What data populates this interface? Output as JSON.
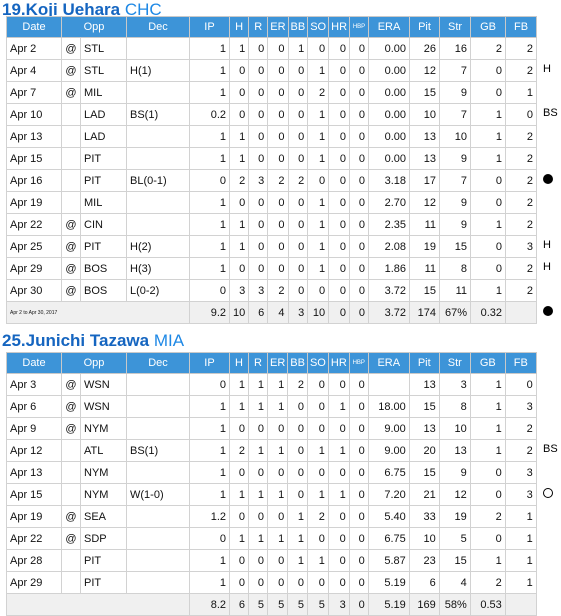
{
  "sections": [
    {
      "title_name": "19.Koji Uehara",
      "title_team": "CHC",
      "headers": [
        "Date",
        "",
        "Opp",
        "Dec",
        "IP",
        "H",
        "R",
        "ER",
        "BB",
        "SO",
        "HR",
        "HBP",
        "ERA",
        "Pit",
        "Str",
        "GB",
        "FB"
      ],
      "rows": [
        {
          "date": "Apr 2",
          "at": "@",
          "opp": "STL",
          "dec": "",
          "ip": "1",
          "h": "1",
          "r": "0",
          "er": "0",
          "bb": "1",
          "so": "0",
          "hr": "0",
          "hbp": "0",
          "era": "0.00",
          "pit": "26",
          "str": "16",
          "gb": "2",
          "fb": "2",
          "mark": ""
        },
        {
          "date": "Apr 4",
          "at": "@",
          "opp": "STL",
          "dec": "H(1)",
          "ip": "1",
          "h": "0",
          "r": "0",
          "er": "0",
          "bb": "0",
          "so": "1",
          "hr": "0",
          "hbp": "0",
          "era": "0.00",
          "pit": "12",
          "str": "7",
          "gb": "0",
          "fb": "2",
          "mark": "H"
        },
        {
          "date": "Apr 7",
          "at": "@",
          "opp": "MIL",
          "dec": "",
          "ip": "1",
          "h": "0",
          "r": "0",
          "er": "0",
          "bb": "0",
          "so": "2",
          "hr": "0",
          "hbp": "0",
          "era": "0.00",
          "pit": "15",
          "str": "9",
          "gb": "0",
          "fb": "1",
          "mark": ""
        },
        {
          "date": "Apr 10",
          "at": "",
          "opp": "LAD",
          "dec": "BS(1)",
          "ip": "0.2",
          "h": "0",
          "r": "0",
          "er": "0",
          "bb": "0",
          "so": "1",
          "hr": "0",
          "hbp": "0",
          "era": "0.00",
          "pit": "10",
          "str": "7",
          "gb": "1",
          "fb": "0",
          "mark": "BS"
        },
        {
          "date": "Apr 13",
          "at": "",
          "opp": "LAD",
          "dec": "",
          "ip": "1",
          "h": "1",
          "r": "0",
          "er": "0",
          "bb": "0",
          "so": "1",
          "hr": "0",
          "hbp": "0",
          "era": "0.00",
          "pit": "13",
          "str": "10",
          "gb": "1",
          "fb": "2",
          "mark": ""
        },
        {
          "date": "Apr 15",
          "at": "",
          "opp": "PIT",
          "dec": "",
          "ip": "1",
          "h": "1",
          "r": "0",
          "er": "0",
          "bb": "0",
          "so": "1",
          "hr": "0",
          "hbp": "0",
          "era": "0.00",
          "pit": "13",
          "str": "9",
          "gb": "1",
          "fb": "2",
          "mark": ""
        },
        {
          "date": "Apr 16",
          "at": "",
          "opp": "PIT",
          "dec": "BL(0-1)",
          "ip": "0",
          "h": "2",
          "r": "3",
          "er": "2",
          "bb": "2",
          "so": "0",
          "hr": "0",
          "hbp": "0",
          "era": "3.18",
          "pit": "17",
          "str": "7",
          "gb": "0",
          "fb": "2",
          "mark": "filled-dot"
        },
        {
          "date": "Apr 19",
          "at": "",
          "opp": "MIL",
          "dec": "",
          "ip": "1",
          "h": "0",
          "r": "0",
          "er": "0",
          "bb": "0",
          "so": "1",
          "hr": "0",
          "hbp": "0",
          "era": "2.70",
          "pit": "12",
          "str": "9",
          "gb": "0",
          "fb": "2",
          "mark": ""
        },
        {
          "date": "Apr 22",
          "at": "@",
          "opp": "CIN",
          "dec": "",
          "ip": "1",
          "h": "1",
          "r": "0",
          "er": "0",
          "bb": "0",
          "so": "1",
          "hr": "0",
          "hbp": "0",
          "era": "2.35",
          "pit": "11",
          "str": "9",
          "gb": "1",
          "fb": "2",
          "mark": ""
        },
        {
          "date": "Apr 25",
          "at": "@",
          "opp": "PIT",
          "dec": "H(2)",
          "ip": "1",
          "h": "1",
          "r": "0",
          "er": "0",
          "bb": "0",
          "so": "1",
          "hr": "0",
          "hbp": "0",
          "era": "2.08",
          "pit": "19",
          "str": "15",
          "gb": "0",
          "fb": "3",
          "mark": "H"
        },
        {
          "date": "Apr 29",
          "at": "@",
          "opp": "BOS",
          "dec": "H(3)",
          "ip": "1",
          "h": "0",
          "r": "0",
          "er": "0",
          "bb": "0",
          "so": "1",
          "hr": "0",
          "hbp": "0",
          "era": "1.86",
          "pit": "11",
          "str": "8",
          "gb": "0",
          "fb": "2",
          "mark": "H"
        },
        {
          "date": "Apr 30",
          "at": "@",
          "opp": "BOS",
          "dec": "L(0-2)",
          "ip": "0",
          "h": "3",
          "r": "3",
          "er": "2",
          "bb": "0",
          "so": "0",
          "hr": "0",
          "hbp": "0",
          "era": "3.72",
          "pit": "15",
          "str": "11",
          "gb": "1",
          "fb": "2",
          "mark": ""
        }
      ],
      "total": {
        "period": "Apr 2 to Apr 30, 2017",
        "ip": "9.2",
        "h": "10",
        "r": "6",
        "er": "4",
        "bb": "3",
        "so": "10",
        "hr": "0",
        "hbp": "0",
        "era": "3.72",
        "pit": "174",
        "str": "67%",
        "gb": "0.32",
        "fb": "",
        "mark": "filled-dot"
      }
    },
    {
      "title_name": "25.Junichi Tazawa",
      "title_team": "MIA",
      "headers": [
        "Date",
        "",
        "Opp",
        "Dec",
        "IP",
        "H",
        "R",
        "ER",
        "BB",
        "SO",
        "HR",
        "HBP",
        "ERA",
        "Pit",
        "Str",
        "GB",
        "FB"
      ],
      "rows": [
        {
          "date": "Apr 3",
          "at": "@",
          "opp": "WSN",
          "dec": "",
          "ip": "0",
          "h": "1",
          "r": "1",
          "er": "1",
          "bb": "2",
          "so": "0",
          "hr": "0",
          "hbp": "0",
          "era": "",
          "pit": "13",
          "str": "3",
          "gb": "1",
          "fb": "0",
          "mark": ""
        },
        {
          "date": "Apr 6",
          "at": "@",
          "opp": "WSN",
          "dec": "",
          "ip": "1",
          "h": "1",
          "r": "1",
          "er": "1",
          "bb": "0",
          "so": "0",
          "hr": "1",
          "hbp": "0",
          "era": "18.00",
          "pit": "15",
          "str": "8",
          "gb": "1",
          "fb": "3",
          "mark": ""
        },
        {
          "date": "Apr 9",
          "at": "@",
          "opp": "NYM",
          "dec": "",
          "ip": "1",
          "h": "0",
          "r": "0",
          "er": "0",
          "bb": "0",
          "so": "0",
          "hr": "0",
          "hbp": "0",
          "era": "9.00",
          "pit": "13",
          "str": "10",
          "gb": "1",
          "fb": "2",
          "mark": ""
        },
        {
          "date": "Apr 12",
          "at": "",
          "opp": "ATL",
          "dec": "BS(1)",
          "ip": "1",
          "h": "2",
          "r": "1",
          "er": "1",
          "bb": "0",
          "so": "1",
          "hr": "1",
          "hbp": "0",
          "era": "9.00",
          "pit": "20",
          "str": "13",
          "gb": "1",
          "fb": "2",
          "mark": "BS"
        },
        {
          "date": "Apr 13",
          "at": "",
          "opp": "NYM",
          "dec": "",
          "ip": "1",
          "h": "0",
          "r": "0",
          "er": "0",
          "bb": "0",
          "so": "0",
          "hr": "0",
          "hbp": "0",
          "era": "6.75",
          "pit": "15",
          "str": "9",
          "gb": "0",
          "fb": "3",
          "mark": ""
        },
        {
          "date": "Apr 15",
          "at": "",
          "opp": "NYM",
          "dec": "W(1-0)",
          "ip": "1",
          "h": "1",
          "r": "1",
          "er": "1",
          "bb": "0",
          "so": "1",
          "hr": "1",
          "hbp": "0",
          "era": "7.20",
          "pit": "21",
          "str": "12",
          "gb": "0",
          "fb": "3",
          "mark": "open-dot"
        },
        {
          "date": "Apr 19",
          "at": "@",
          "opp": "SEA",
          "dec": "",
          "ip": "1.2",
          "h": "0",
          "r": "0",
          "er": "0",
          "bb": "1",
          "so": "2",
          "hr": "0",
          "hbp": "0",
          "era": "5.40",
          "pit": "33",
          "str": "19",
          "gb": "2",
          "fb": "1",
          "mark": ""
        },
        {
          "date": "Apr 22",
          "at": "@",
          "opp": "SDP",
          "dec": "",
          "ip": "0",
          "h": "1",
          "r": "1",
          "er": "1",
          "bb": "1",
          "so": "0",
          "hr": "0",
          "hbp": "0",
          "era": "6.75",
          "pit": "10",
          "str": "5",
          "gb": "0",
          "fb": "1",
          "mark": ""
        },
        {
          "date": "Apr 28",
          "at": "",
          "opp": "PIT",
          "dec": "",
          "ip": "1",
          "h": "0",
          "r": "0",
          "er": "0",
          "bb": "1",
          "so": "1",
          "hr": "0",
          "hbp": "0",
          "era": "5.87",
          "pit": "23",
          "str": "15",
          "gb": "1",
          "fb": "1",
          "mark": ""
        },
        {
          "date": "Apr 29",
          "at": "",
          "opp": "PIT",
          "dec": "",
          "ip": "1",
          "h": "0",
          "r": "0",
          "er": "0",
          "bb": "0",
          "so": "0",
          "hr": "0",
          "hbp": "0",
          "era": "5.19",
          "pit": "6",
          "str": "4",
          "gb": "2",
          "fb": "1",
          "mark": ""
        }
      ],
      "total": {
        "period": "",
        "ip": "8.2",
        "h": "6",
        "r": "5",
        "er": "5",
        "bb": "5",
        "so": "5",
        "hr": "3",
        "hbp": "0",
        "era": "5.19",
        "pit": "169",
        "str": "58%",
        "gb": "0.53",
        "fb": "",
        "mark": ""
      }
    }
  ]
}
